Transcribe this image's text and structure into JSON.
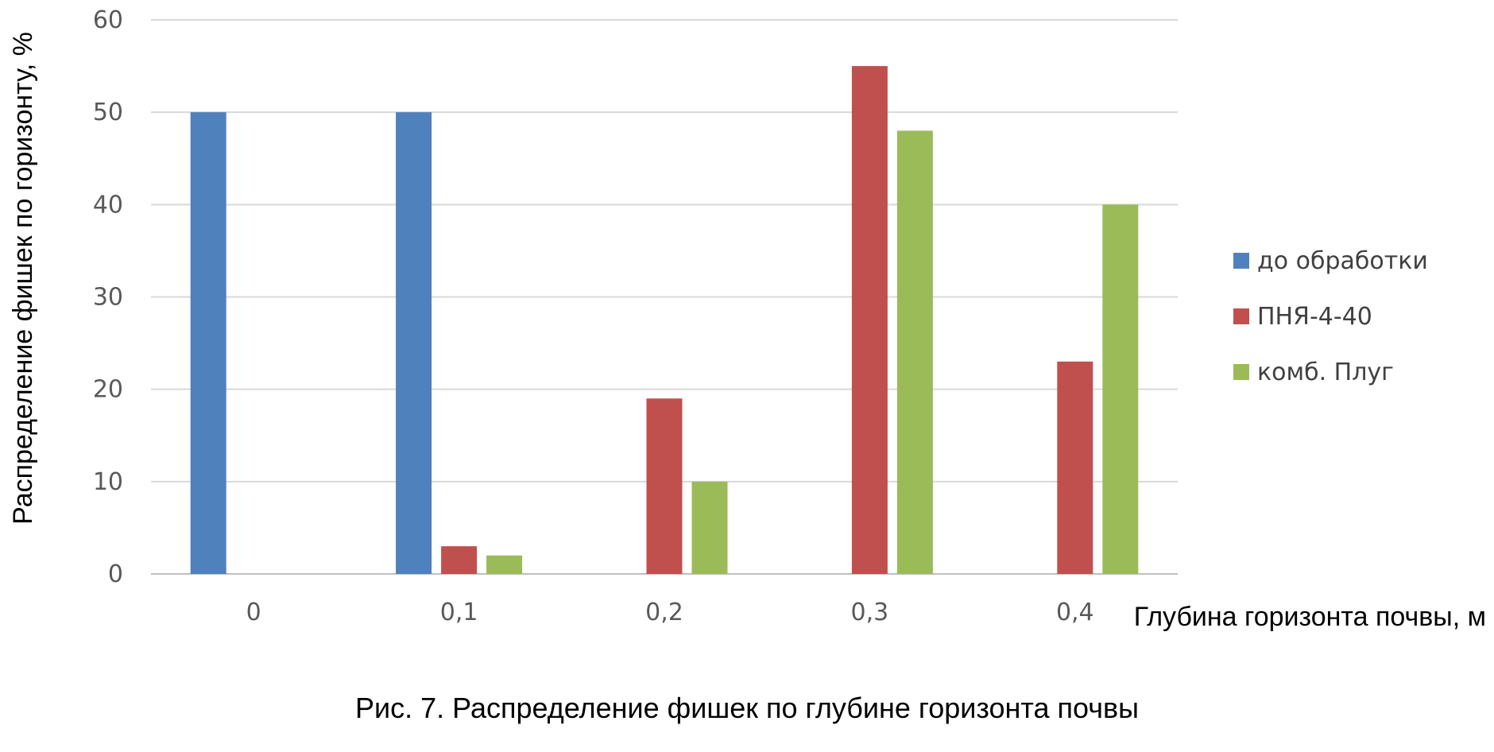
{
  "chart_data": {
    "type": "bar",
    "categories": [
      "0",
      "0,1",
      "0,2",
      "0,3",
      "0,4"
    ],
    "series": [
      {
        "name": "до обработки",
        "color": "#4F81BD",
        "values": [
          50,
          50,
          0,
          0,
          0
        ]
      },
      {
        "name": "ПНЯ-4-40",
        "color": "#C0504D",
        "values": [
          0,
          3,
          19,
          55,
          23
        ]
      },
      {
        "name": "комб. Плуг",
        "color": "#9BBB59",
        "values": [
          0,
          2,
          10,
          48,
          40
        ]
      }
    ],
    "yticks": [
      "0",
      "10",
      "20",
      "30",
      "40",
      "50",
      "60"
    ],
    "ylim": [
      0,
      60
    ],
    "xlabel": "Глубина горизонта почвы, м",
    "ylabel": "Распределение фишек по горизонту, %",
    "grid": true,
    "legend": "right"
  },
  "caption": "Рис. 7. Распределение фишек по глубине горизонта почвы"
}
